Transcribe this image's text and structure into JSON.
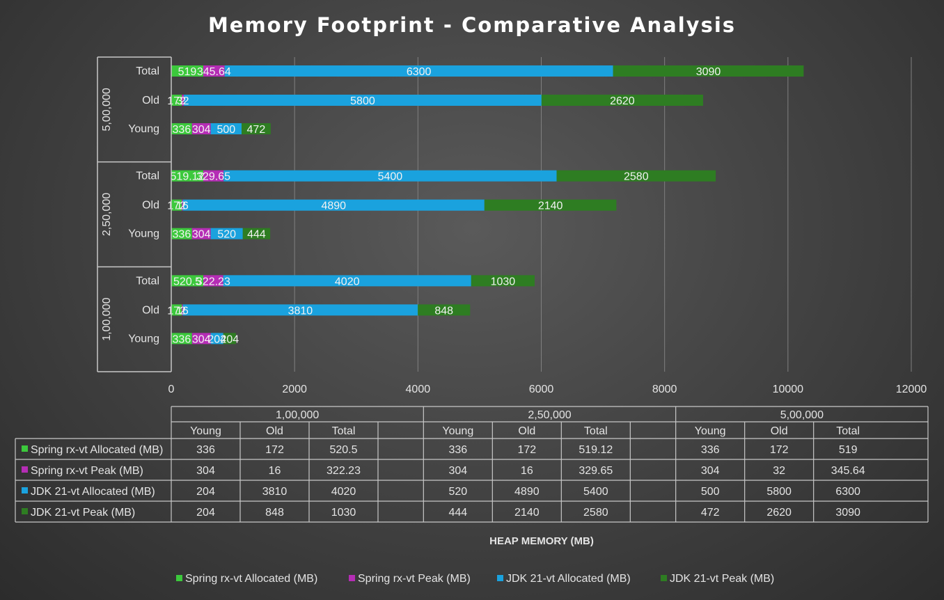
{
  "colors": {
    "spring_alloc": "#3cc93c",
    "spring_peak": "#b52db5",
    "jdk_alloc": "#1aa2de",
    "jdk_peak": "#2e7d22",
    "grid": "#808080",
    "lines": "#c8c8c8"
  },
  "chart_data": {
    "type": "bar",
    "orientation": "horizontal",
    "stacked": true,
    "title": "Memory Footprint - Comparative Analysis",
    "xlabel": "HEAP MEMORY (MB)",
    "xlim": [
      0,
      12000
    ],
    "xticks": [
      "0",
      "2000",
      "4000",
      "6000",
      "8000",
      "10000",
      "12000"
    ],
    "legend_position": "bottom",
    "groups": [
      "1,00,000",
      "2,50,000",
      "5,00,000"
    ],
    "categories": [
      "Young",
      "Old",
      "Total"
    ],
    "series": [
      {
        "name": "Spring rx-vt Allocated (MB)",
        "values": [
          [
            "336",
            "172",
            "520.5"
          ],
          [
            "336",
            "172",
            "519.12"
          ],
          [
            "336",
            "172",
            "519"
          ]
        ]
      },
      {
        "name": "Spring rx-vt Peak (MB)",
        "values": [
          [
            "304",
            "16",
            "322.23"
          ],
          [
            "304",
            "16",
            "329.65"
          ],
          [
            "304",
            "32",
            "345.64"
          ]
        ]
      },
      {
        "name": "JDK 21-vt Allocated (MB)",
        "values": [
          [
            "204",
            "3810",
            "4020"
          ],
          [
            "520",
            "4890",
            "5400"
          ],
          [
            "500",
            "5800",
            "6300"
          ]
        ]
      },
      {
        "name": "JDK 21-vt Peak (MB)",
        "values": [
          [
            "204",
            "848",
            "1030"
          ],
          [
            "444",
            "2140",
            "2580"
          ],
          [
            "472",
            "2620",
            "3090"
          ]
        ]
      }
    ]
  }
}
